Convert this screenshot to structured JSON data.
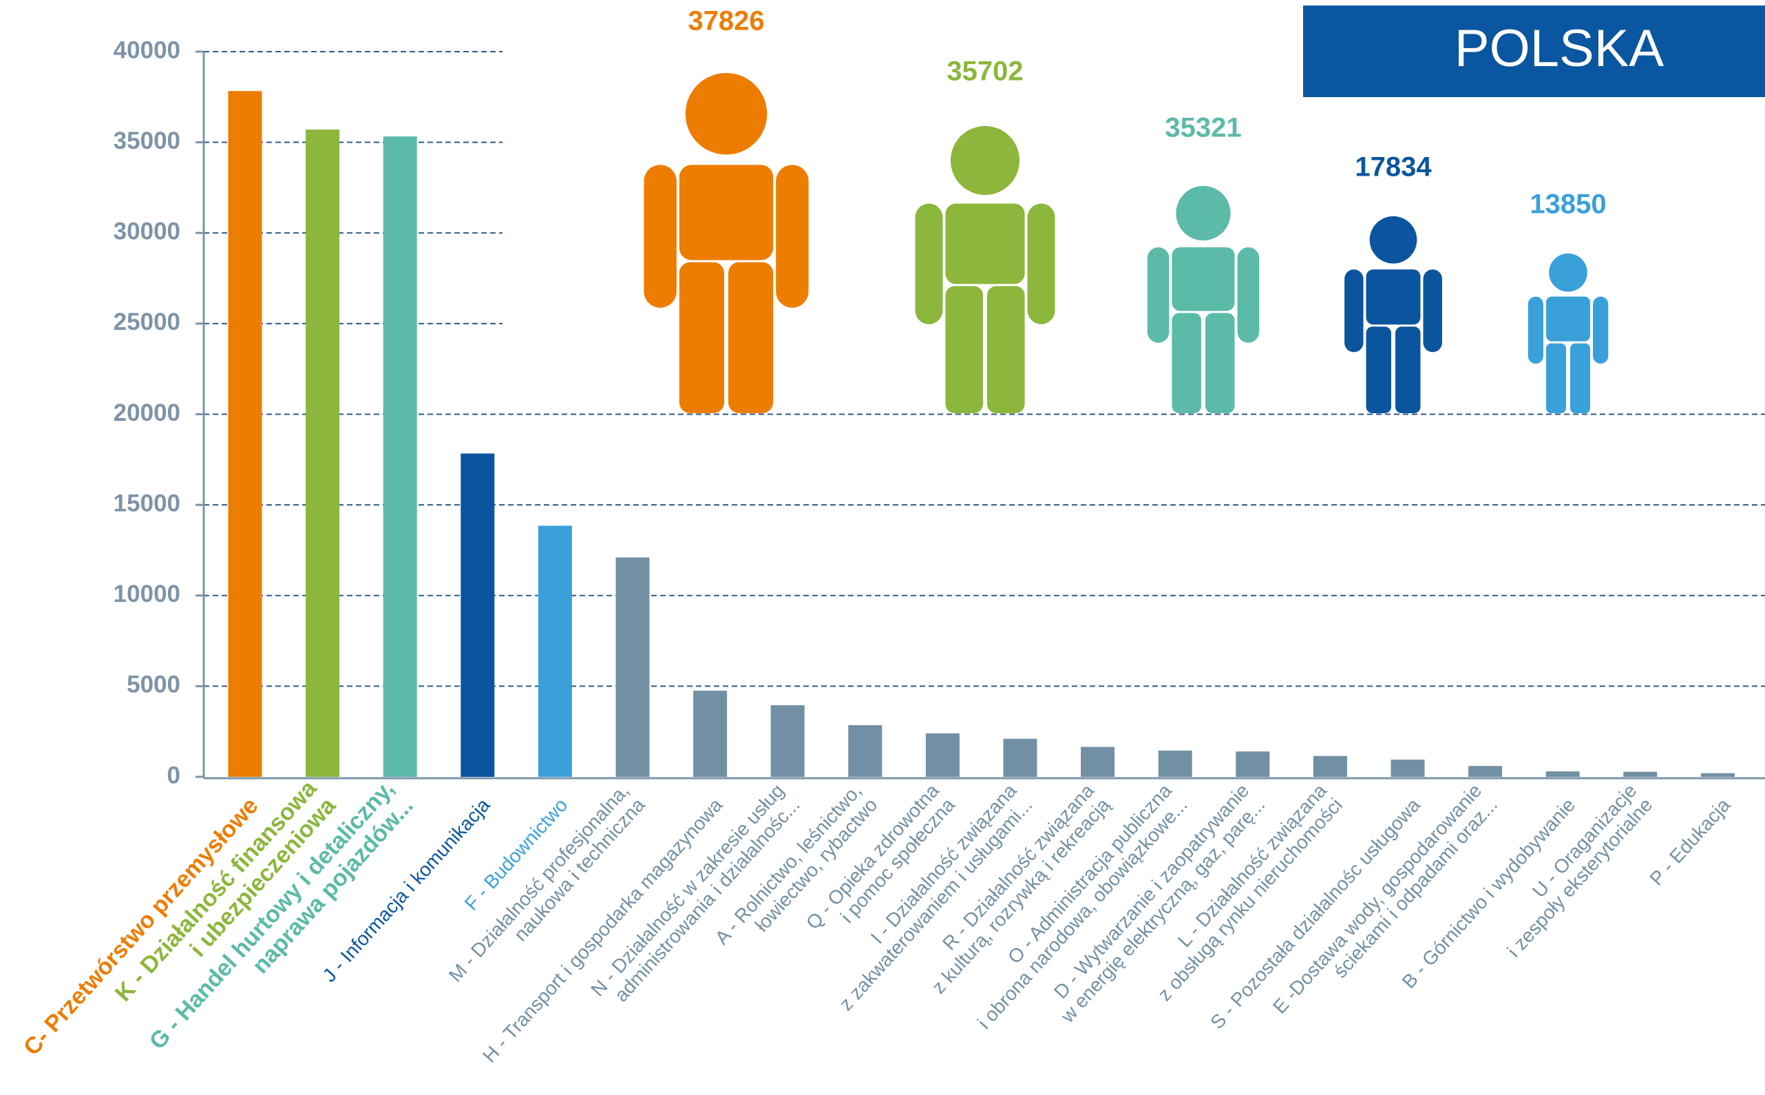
{
  "chart_data": {
    "type": "bar",
    "annotation": "POLSKA",
    "categories": [
      "C- Przetwórstwo przemysłowe",
      "K - Działalność finansowa\ni ubezpieczeniowa",
      "G - Handel hurtowy i detaliczny,\nnaprawa pojazdów...",
      "J - Informacja i komunikacja",
      "F - Budownictwo",
      "M - Działalność profesjonalna,\nnaukowa i techniczna",
      "H - Transport i gospodarka magazynowa",
      "N - Działalność w zakresie usług\nadministrowania i działalnośc...",
      "A - Rolnictwo, leśnictwo,\nłowiectwo, rybactwo",
      "Q - Opieka zdrowotna\ni pomoc społeczna",
      "I - Działalność związana\nz zakwaterowaniem i usługami...",
      "R - Działalność związana\nz kulturą, rozrywką i rekreacją",
      "O - Administracja publiczna\ni obrona narodowa, obowiązkowe...",
      "D - Wytwarzanie i zaopatrywanie\nw energię elektryczną, gaz, parę...",
      "L - Działalność związana\nz obsługą rynku nieruchomości",
      "S - Pozostała działalnośc usługowa",
      "E -Dostawa wody, gospodarowanie\nściekami i odpadami oraz...",
      "B - Górnictwo i wydobywanie",
      "U - Oraganizacje\ni zespoły eksterytorialne",
      "P - Edukacja"
    ],
    "values": [
      37826,
      35702,
      35321,
      17834,
      13850,
      12100,
      4750,
      3950,
      2850,
      2400,
      2100,
      1650,
      1450,
      1400,
      1150,
      950,
      600,
      300,
      280,
      200
    ],
    "colors": [
      "#ed7d00",
      "#8cb63c",
      "#5bbaa8",
      "#0b559e",
      "#3aa0da",
      "#7290a4",
      "#7290a4",
      "#7290a4",
      "#7290a4",
      "#7290a4",
      "#7290a4",
      "#7290a4",
      "#7290a4",
      "#7290a4",
      "#7290a4",
      "#7290a4",
      "#7290a4",
      "#7290a4",
      "#7290a4",
      "#7290a4"
    ],
    "ylim": [
      0,
      40000
    ],
    "yticks": [
      0,
      5000,
      10000,
      15000,
      20000,
      25000,
      30000,
      35000,
      40000
    ],
    "grid": true
  }
}
